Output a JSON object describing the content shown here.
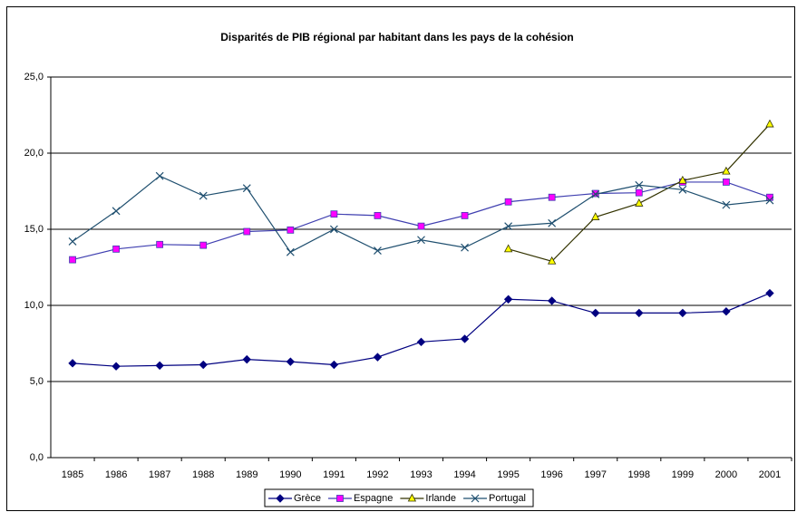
{
  "chart_data": {
    "type": "line",
    "title": "Disparités de PIB régional par habitant dans les pays de la cohésion",
    "categories": [
      "1985",
      "1986",
      "1987",
      "1988",
      "1989",
      "1990",
      "1991",
      "1992",
      "1993",
      "1994",
      "1995",
      "1996",
      "1997",
      "1998",
      "1999",
      "2000",
      "2001"
    ],
    "series": [
      {
        "name": "Grèce",
        "color": "#000080",
        "marker": "diamond",
        "marker_color": "#000080",
        "values": [
          6.2,
          6.0,
          6.05,
          6.1,
          6.45,
          6.3,
          6.1,
          6.6,
          7.6,
          7.8,
          10.4,
          10.3,
          9.5,
          9.5,
          9.5,
          9.6,
          10.8
        ]
      },
      {
        "name": "Espagne",
        "color": "#3f3fb0",
        "marker": "square",
        "marker_color": "#ff00ff",
        "values": [
          13.0,
          13.7,
          14.0,
          13.95,
          14.85,
          14.95,
          16.0,
          15.9,
          15.2,
          15.9,
          16.8,
          17.1,
          17.35,
          17.4,
          18.1,
          18.1,
          17.1
        ]
      },
      {
        "name": "Irlande",
        "color": "#333300",
        "marker": "triangle",
        "marker_color": "#ffff00",
        "values": [
          null,
          null,
          null,
          null,
          null,
          null,
          null,
          null,
          null,
          null,
          13.7,
          12.9,
          15.8,
          16.7,
          18.2,
          18.8,
          21.9
        ]
      },
      {
        "name": "Portugal",
        "color": "#1f4f6f",
        "marker": "x",
        "marker_color": "#1f4f6f",
        "values": [
          14.2,
          16.2,
          18.5,
          17.2,
          17.7,
          13.5,
          15.0,
          13.6,
          14.3,
          13.8,
          15.2,
          15.4,
          17.3,
          17.9,
          17.6,
          16.6,
          16.9
        ]
      }
    ],
    "ylim": [
      0,
      25
    ],
    "yticks": [
      {
        "value": 0,
        "label": "0,0"
      },
      {
        "value": 5,
        "label": "5,0"
      },
      {
        "value": 10,
        "label": "10,0"
      },
      {
        "value": 15,
        "label": "15,0"
      },
      {
        "value": 20,
        "label": "20,0"
      },
      {
        "value": 25,
        "label": "25,0"
      }
    ],
    "grid": true,
    "legend": "bottom"
  }
}
